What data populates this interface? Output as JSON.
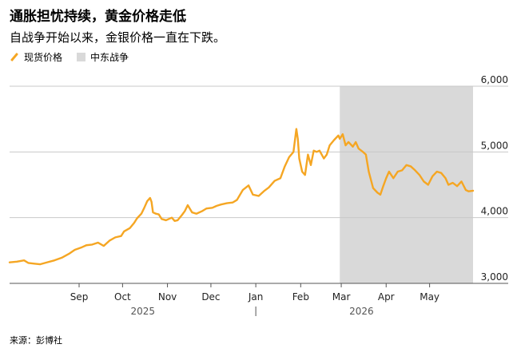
{
  "title": "通胀担忧持续，黄金价格走低",
  "subtitle": "自战争开始以来，金银价格一直在下跌。",
  "legend": [
    {
      "label": "现货价格",
      "color": "#f5a623",
      "kind": "line"
    },
    {
      "label": "中东战争",
      "color": "#d9d9d9",
      "kind": "area"
    }
  ],
  "source": "来源：彭博社",
  "chart_data": {
    "type": "line",
    "title": "通胀担忧持续，黄金价格走低",
    "subtitle": "自战争开始以来，金银价格一直在下跌。",
    "xlabel": "",
    "ylabel": "",
    "ylim": [
      3000,
      6000
    ],
    "yticks": [
      3000,
      4000,
      5000,
      6000
    ],
    "ytick_labels": [
      "3,000",
      "4,000",
      "5,000",
      "6,000"
    ],
    "y_axis_side": "right",
    "grid": true,
    "legend_position": "top-left",
    "xlim": [
      "2025-07-15",
      "2026-05-31"
    ],
    "x_ticks": [
      {
        "date": "2025-09-01",
        "label": "Sep"
      },
      {
        "date": "2025-10-01",
        "label": "Oct"
      },
      {
        "date": "2025-11-01",
        "label": "Nov"
      },
      {
        "date": "2025-12-01",
        "label": "Dec"
      },
      {
        "date": "2026-01-01",
        "label": "Jan"
      },
      {
        "date": "2026-02-01",
        "label": "Feb"
      },
      {
        "date": "2026-03-01",
        "label": "Mar"
      },
      {
        "date": "2026-04-01",
        "label": "Apr"
      },
      {
        "date": "2026-05-01",
        "label": "May"
      }
    ],
    "year_labels": [
      {
        "date": "2025-10-15",
        "label": "2025"
      },
      {
        "date": "2026-03-15",
        "label": "2026"
      }
    ],
    "year_divider": "2026-01-01",
    "shaded_region": {
      "label": "中东战争",
      "start": "2026-02-28",
      "end": "2026-05-31",
      "color": "#d9d9d9"
    },
    "series": [
      {
        "name": "现货价格",
        "color": "#f5a623",
        "points": [
          [
            "2025-07-15",
            3320
          ],
          [
            "2025-07-20",
            3330
          ],
          [
            "2025-07-25",
            3350
          ],
          [
            "2025-07-28",
            3310
          ],
          [
            "2025-08-01",
            3300
          ],
          [
            "2025-08-05",
            3290
          ],
          [
            "2025-08-10",
            3320
          ],
          [
            "2025-08-15",
            3350
          ],
          [
            "2025-08-20",
            3390
          ],
          [
            "2025-08-25",
            3450
          ],
          [
            "2025-08-29",
            3510
          ],
          [
            "2025-09-03",
            3550
          ],
          [
            "2025-09-06",
            3580
          ],
          [
            "2025-09-10",
            3590
          ],
          [
            "2025-09-14",
            3620
          ],
          [
            "2025-09-18",
            3570
          ],
          [
            "2025-09-22",
            3650
          ],
          [
            "2025-09-26",
            3700
          ],
          [
            "2025-09-30",
            3720
          ],
          [
            "2025-10-02",
            3790
          ],
          [
            "2025-10-06",
            3840
          ],
          [
            "2025-10-09",
            3920
          ],
          [
            "2025-10-11",
            3990
          ],
          [
            "2025-10-14",
            4060
          ],
          [
            "2025-10-16",
            4150
          ],
          [
            "2025-10-18",
            4250
          ],
          [
            "2025-10-20",
            4300
          ],
          [
            "2025-10-21",
            4240
          ],
          [
            "2025-10-22",
            4080
          ],
          [
            "2025-10-24",
            4060
          ],
          [
            "2025-10-26",
            4050
          ],
          [
            "2025-10-28",
            3980
          ],
          [
            "2025-10-31",
            3960
          ],
          [
            "2025-11-04",
            4000
          ],
          [
            "2025-11-06",
            3950
          ],
          [
            "2025-11-08",
            3960
          ],
          [
            "2025-11-11",
            4040
          ],
          [
            "2025-11-13",
            4100
          ],
          [
            "2025-11-15",
            4190
          ],
          [
            "2025-11-18",
            4080
          ],
          [
            "2025-11-21",
            4060
          ],
          [
            "2025-11-25",
            4100
          ],
          [
            "2025-11-28",
            4140
          ],
          [
            "2025-12-02",
            4150
          ],
          [
            "2025-12-05",
            4180
          ],
          [
            "2025-12-08",
            4200
          ],
          [
            "2025-12-12",
            4220
          ],
          [
            "2025-12-16",
            4230
          ],
          [
            "2025-12-19",
            4270
          ],
          [
            "2025-12-23",
            4420
          ],
          [
            "2025-12-27",
            4490
          ],
          [
            "2025-12-30",
            4350
          ],
          [
            "2026-01-03",
            4330
          ],
          [
            "2026-01-07",
            4410
          ],
          [
            "2026-01-10",
            4460
          ],
          [
            "2026-01-14",
            4560
          ],
          [
            "2026-01-18",
            4600
          ],
          [
            "2026-01-21",
            4780
          ],
          [
            "2026-01-24",
            4920
          ],
          [
            "2026-01-27",
            5000
          ],
          [
            "2026-01-29",
            5350
          ],
          [
            "2026-01-30",
            5200
          ],
          [
            "2026-01-31",
            4900
          ],
          [
            "2026-02-02",
            4700
          ],
          [
            "2026-02-04",
            4650
          ],
          [
            "2026-02-06",
            4960
          ],
          [
            "2026-02-08",
            4800
          ],
          [
            "2026-02-10",
            5020
          ],
          [
            "2026-02-12",
            5000
          ],
          [
            "2026-02-14",
            5020
          ],
          [
            "2026-02-17",
            4900
          ],
          [
            "2026-02-19",
            4960
          ],
          [
            "2026-02-21",
            5100
          ],
          [
            "2026-02-24",
            5180
          ],
          [
            "2026-02-27",
            5250
          ],
          [
            "2026-02-28",
            5200
          ],
          [
            "2026-03-02",
            5270
          ],
          [
            "2026-03-04",
            5100
          ],
          [
            "2026-03-06",
            5150
          ],
          [
            "2026-03-09",
            5080
          ],
          [
            "2026-03-11",
            5150
          ],
          [
            "2026-03-13",
            5050
          ],
          [
            "2026-03-16",
            5000
          ],
          [
            "2026-03-18",
            4960
          ],
          [
            "2026-03-20",
            4700
          ],
          [
            "2026-03-23",
            4450
          ],
          [
            "2026-03-26",
            4380
          ],
          [
            "2026-03-28",
            4350
          ],
          [
            "2026-03-30",
            4480
          ],
          [
            "2026-04-01",
            4600
          ],
          [
            "2026-04-03",
            4700
          ],
          [
            "2026-04-06",
            4600
          ],
          [
            "2026-04-09",
            4700
          ],
          [
            "2026-04-12",
            4720
          ],
          [
            "2026-04-15",
            4800
          ],
          [
            "2026-04-18",
            4780
          ],
          [
            "2026-04-21",
            4720
          ],
          [
            "2026-04-24",
            4650
          ],
          [
            "2026-04-27",
            4550
          ],
          [
            "2026-04-30",
            4500
          ],
          [
            "2026-05-03",
            4630
          ],
          [
            "2026-05-06",
            4700
          ],
          [
            "2026-05-09",
            4680
          ],
          [
            "2026-05-12",
            4600
          ],
          [
            "2026-05-14",
            4500
          ],
          [
            "2026-05-17",
            4530
          ],
          [
            "2026-05-20",
            4480
          ],
          [
            "2026-05-23",
            4550
          ],
          [
            "2026-05-26",
            4420
          ],
          [
            "2026-05-28",
            4400
          ],
          [
            "2026-05-31",
            4410
          ]
        ]
      }
    ]
  }
}
